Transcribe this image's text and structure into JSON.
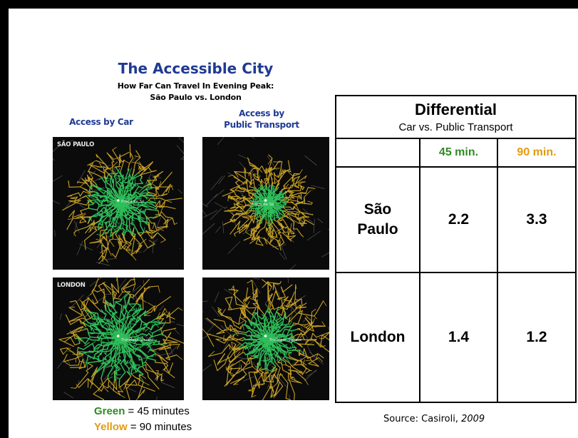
{
  "title": "The Accessible City",
  "subtitle_line1": "How Far Can Travel In Evening Peak:",
  "subtitle_line2": "São Paulo vs. London",
  "col_car": "Access by Car",
  "col_pt_line1": "Access by",
  "col_pt_line2": "Public Transport",
  "maps": [
    {
      "city_label": "SÃO PAULO",
      "place": "Praça de Sé",
      "mode": "car"
    },
    {
      "city_label": "",
      "place": "Praça de Sé",
      "mode": "public-transport"
    },
    {
      "city_label": "LONDON",
      "place": "Trafalgar Square",
      "mode": "car"
    },
    {
      "city_label": "",
      "place": "Trafalgar Square",
      "mode": "public-transport"
    }
  ],
  "legend": {
    "green_word": "Green",
    "green_rest": " = 45 minutes",
    "yellow_word": "Yellow",
    "yellow_rest": " = 90 minutes"
  },
  "table": {
    "title": "Differential",
    "subtitle": "Car vs. Public Transport",
    "col_45": "45 min.",
    "col_90": "90 min.",
    "rows": [
      {
        "city": "São Paulo",
        "v45": "2.2",
        "v90": "3.3"
      },
      {
        "city": "London",
        "v45": "1.4",
        "v90": "1.2"
      }
    ]
  },
  "source_prefix": "Source: Casiroli, ",
  "source_year": "2009",
  "colors": {
    "green": "#2e8b22",
    "yellow": "#e39b10",
    "title_blue": "#1f3a93",
    "map_green": "#2fbf5a",
    "map_yellow": "#c9a227"
  }
}
